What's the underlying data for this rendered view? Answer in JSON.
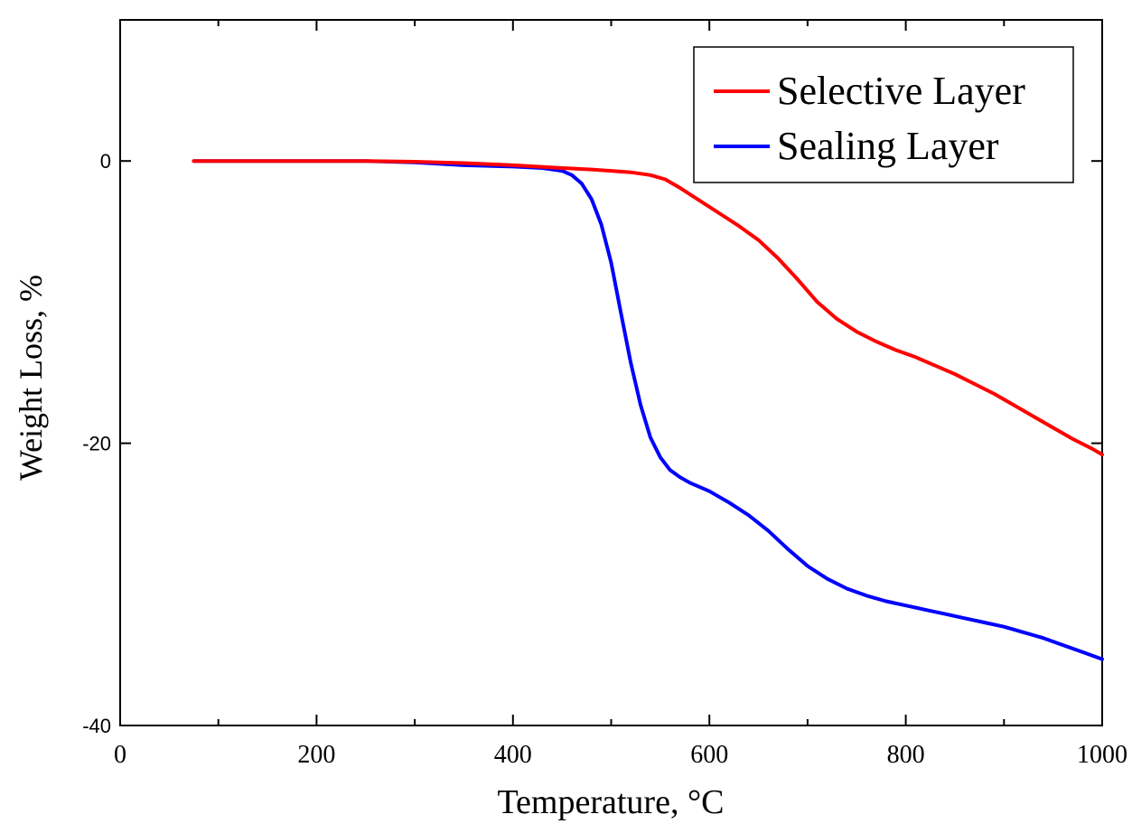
{
  "chart_data": {
    "type": "line",
    "title": "",
    "xlabel": "Temperature, °C",
    "ylabel": "Weight Loss, %",
    "xlim": [
      0,
      1000
    ],
    "ylim": [
      -40,
      10
    ],
    "x_ticks": [
      0,
      200,
      400,
      600,
      800,
      1000
    ],
    "x_tick_labels": [
      "0",
      "200",
      "400",
      "600",
      "800",
      "1000"
    ],
    "y_ticks": [
      -40,
      -20,
      0
    ],
    "y_tick_labels": [
      "-40",
      "-20",
      "0"
    ],
    "grid": false,
    "legend_position": "top-right",
    "series": [
      {
        "name": "Selective Layer",
        "color": "#ff0000",
        "x": [
          75,
          100,
          150,
          200,
          250,
          300,
          350,
          400,
          450,
          480,
          500,
          520,
          540,
          555,
          570,
          590,
          610,
          630,
          650,
          670,
          690,
          710,
          730,
          750,
          770,
          790,
          810,
          830,
          850,
          870,
          890,
          910,
          930,
          950,
          970,
          990,
          1000
        ],
        "y": [
          0,
          0,
          0,
          0,
          0,
          -0.05,
          -0.15,
          -0.3,
          -0.5,
          -0.6,
          -0.7,
          -0.8,
          -1.0,
          -1.3,
          -1.9,
          -2.8,
          -3.7,
          -4.6,
          -5.6,
          -6.9,
          -8.4,
          -10.0,
          -11.2,
          -12.1,
          -12.8,
          -13.4,
          -13.9,
          -14.5,
          -15.1,
          -15.8,
          -16.5,
          -17.3,
          -18.1,
          -18.9,
          -19.7,
          -20.4,
          -20.8
        ]
      },
      {
        "name": "Sealing Layer",
        "color": "#0000ff",
        "x": [
          75,
          100,
          150,
          200,
          250,
          300,
          350,
          400,
          430,
          450,
          460,
          470,
          480,
          490,
          500,
          510,
          520,
          530,
          540,
          550,
          560,
          570,
          580,
          600,
          620,
          640,
          660,
          680,
          700,
          720,
          740,
          760,
          780,
          800,
          820,
          840,
          860,
          880,
          900,
          920,
          940,
          960,
          980,
          1000
        ],
        "y": [
          0,
          0,
          0,
          0,
          0,
          -0.1,
          -0.3,
          -0.4,
          -0.5,
          -0.7,
          -1.0,
          -1.6,
          -2.7,
          -4.5,
          -7.2,
          -10.8,
          -14.3,
          -17.3,
          -19.6,
          -21.0,
          -21.9,
          -22.4,
          -22.8,
          -23.4,
          -24.2,
          -25.1,
          -26.2,
          -27.5,
          -28.7,
          -29.6,
          -30.3,
          -30.8,
          -31.2,
          -31.5,
          -31.8,
          -32.1,
          -32.4,
          -32.7,
          -33.0,
          -33.4,
          -33.8,
          -34.3,
          -34.8,
          -35.3
        ]
      }
    ]
  }
}
